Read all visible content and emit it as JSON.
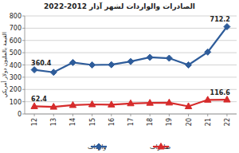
{
  "chart_data": {
    "type": "line",
    "title": "الصادرات والواردات لشهر آذار 2012-2022",
    "y_label": "القيمة بالمليون دولار أمريكي",
    "categories": [
      "12",
      "13",
      "14",
      "15",
      "16",
      "17",
      "18",
      "19",
      "20",
      "21",
      "22"
    ],
    "series": [
      {
        "name": "واردات",
        "color": "#2e5c9a",
        "marker": "diamond",
        "values": [
          360.4,
          340,
          420,
          400,
          402,
          428,
          462,
          455,
          400,
          505,
          712.2
        ],
        "value_labels": [
          "360.4",
          null,
          null,
          null,
          null,
          null,
          null,
          null,
          null,
          null,
          "712.2"
        ]
      },
      {
        "name": "صادرات",
        "color": "#d62b2b",
        "marker": "triangle",
        "values": [
          62.4,
          58,
          72,
          78,
          76,
          86,
          90,
          92,
          62,
          115,
          116.6
        ],
        "value_labels": [
          "62.4",
          null,
          null,
          null,
          null,
          null,
          null,
          null,
          null,
          null,
          "116.6"
        ]
      }
    ],
    "ylim": [
      0,
      800
    ],
    "yticks": [
      0,
      100,
      200,
      300,
      400,
      500,
      600,
      700,
      800
    ],
    "grid": true,
    "legend": "bottom",
    "data_labels": true
  }
}
